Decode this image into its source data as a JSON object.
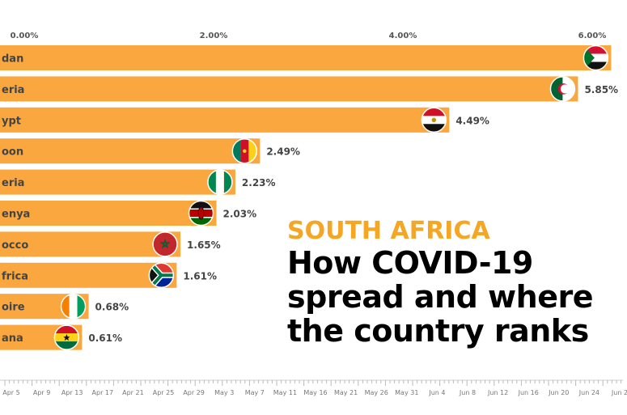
{
  "headline": {
    "kicker": "SOUTH AFRICA",
    "line1": "How COVID-19",
    "line2": "spread and where",
    "line3": "the country ranks"
  },
  "colors": {
    "bar": "#F9A73E",
    "kicker": "#F5A623",
    "text": "#444444",
    "grid": "#cccccc"
  },
  "chart_data": {
    "type": "bar",
    "orientation": "horizontal",
    "categories": [
      "dan",
      "eria",
      "ypt",
      "oon",
      "eria",
      "enya",
      "occo",
      "frica",
      "oire",
      "ana"
    ],
    "flag_icons": [
      "flag-sudan-icon",
      "flag-algeria-icon",
      "flag-egypt-icon",
      "flag-cameroon-icon",
      "flag-nigeria-icon",
      "flag-kenya-icon",
      "flag-morocco-icon",
      "flag-south-africa-icon",
      "flag-cote-divoire-icon",
      "flag-ghana-icon"
    ],
    "values": [
      6.2,
      5.85,
      4.49,
      2.49,
      2.23,
      2.03,
      1.65,
      1.61,
      0.68,
      0.61
    ],
    "value_labels": [
      "",
      "5.85%",
      "4.49%",
      "2.49%",
      "2.23%",
      "2.03%",
      "1.65%",
      "1.61%",
      "0.68%",
      "0.61%"
    ],
    "x_ticks": [
      0,
      2,
      4,
      6
    ],
    "x_tick_labels": [
      "0.00%",
      "2.00%",
      "4.00%",
      "6.00%"
    ],
    "xlim": [
      0,
      6.5
    ],
    "time_axis_labels": [
      "Apr 5",
      "Apr 9",
      "Apr 13",
      "Apr 17",
      "Apr 21",
      "Apr 25",
      "Apr 29",
      "May 3",
      "May 7",
      "May 11",
      "May 16",
      "May 21",
      "May 26",
      "May 31",
      "Jun 4",
      "Jun 8",
      "Jun 12",
      "Jun 16",
      "Jun 20",
      "Jun 24",
      "Jun 2"
    ]
  }
}
